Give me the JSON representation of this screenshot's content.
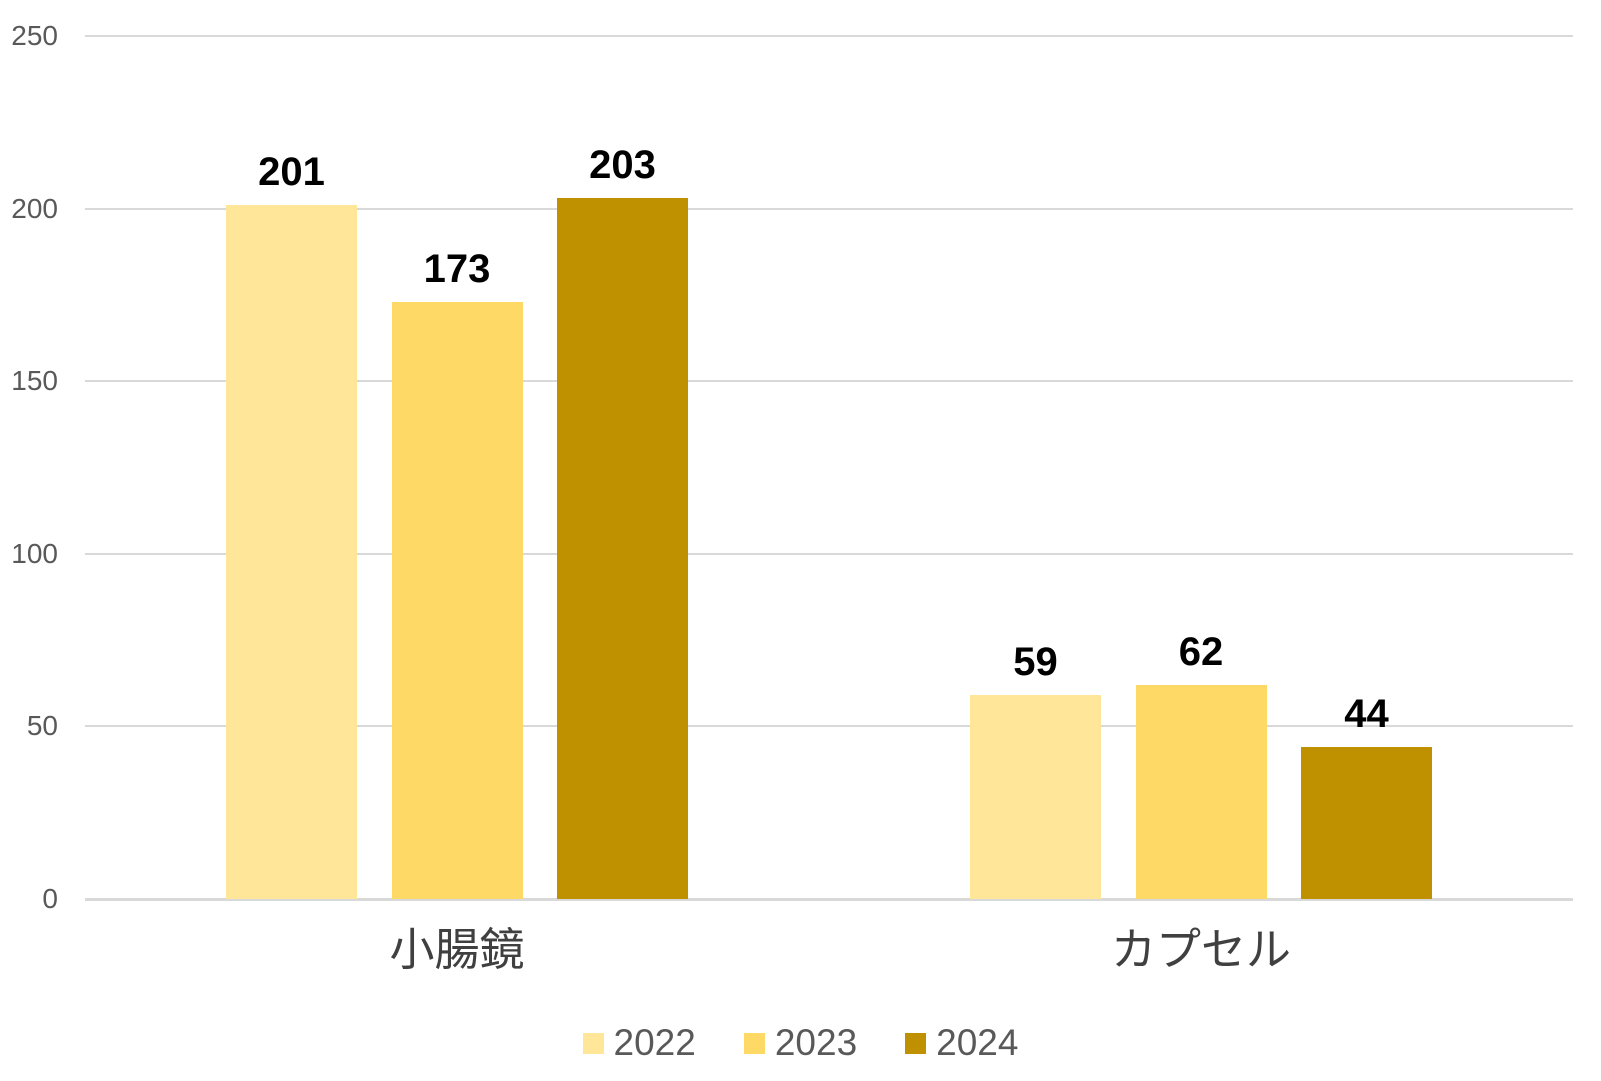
{
  "chart_data": {
    "type": "bar",
    "title": "",
    "xlabel": "",
    "ylabel": "",
    "categories": [
      "小腸鏡",
      "カプセル"
    ],
    "series": [
      {
        "name": "2022",
        "color": "#FFE699",
        "values": [
          201,
          59
        ]
      },
      {
        "name": "2023",
        "color": "#FFD966",
        "values": [
          173,
          62
        ]
      },
      {
        "name": "2024",
        "color": "#BF9000",
        "values": [
          203,
          44
        ]
      }
    ],
    "ylim": [
      0,
      250
    ],
    "yticks": [
      0,
      50,
      100,
      150,
      200,
      250
    ],
    "grid": true,
    "legend_position": "bottom",
    "value_labels_shown": true,
    "colors": {
      "background": "#FFFFFF",
      "gridline": "#D9D9D9",
      "axis_tick_text": "#595959",
      "value_label_text": "#000000",
      "category_label_text": "#404040",
      "legend_text": "#595959"
    }
  }
}
